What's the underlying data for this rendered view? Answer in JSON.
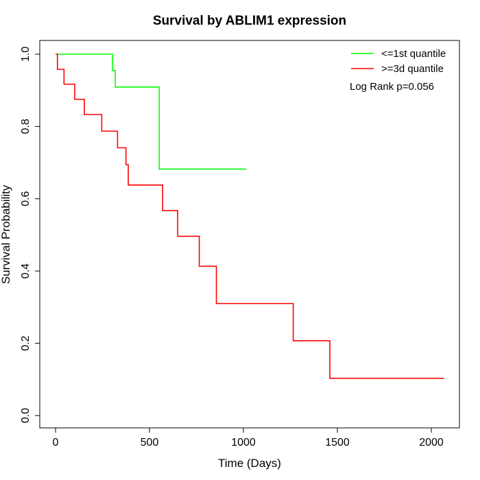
{
  "chart_data": {
    "type": "line",
    "subtype": "kaplan-meier step curve",
    "title": "Survival by ABLIM1 expression",
    "xlabel": "Time (Days)",
    "ylabel": "Survival Probability",
    "xlim": [
      0,
      2070
    ],
    "ylim": [
      0,
      1
    ],
    "x_ticks": [
      "0",
      "500",
      "1000",
      "1500",
      "2000"
    ],
    "y_ticks": [
      "0.0",
      "0.2",
      "0.4",
      "0.6",
      "0.8",
      "1.0"
    ],
    "grid": false,
    "legend_position": "top-right",
    "annotation": "Log Rank p=0.056",
    "series": [
      {
        "name": "<=1st quantile",
        "color": "#00ff00",
        "steps": [
          {
            "x": 0,
            "y": 1.0
          },
          {
            "x": 303,
            "y": 0.955
          },
          {
            "x": 318,
            "y": 0.909
          },
          {
            "x": 552,
            "y": 0.682
          },
          {
            "x": 1015,
            "y": 0.682
          }
        ]
      },
      {
        "name": ">=3d quantile",
        "color": "#ff0000",
        "steps": [
          {
            "x": 0,
            "y": 1.0
          },
          {
            "x": 10,
            "y": 0.958
          },
          {
            "x": 45,
            "y": 0.917
          },
          {
            "x": 102,
            "y": 0.875
          },
          {
            "x": 153,
            "y": 0.833
          },
          {
            "x": 246,
            "y": 0.787
          },
          {
            "x": 330,
            "y": 0.741
          },
          {
            "x": 375,
            "y": 0.694
          },
          {
            "x": 387,
            "y": 0.638
          },
          {
            "x": 570,
            "y": 0.567
          },
          {
            "x": 650,
            "y": 0.496
          },
          {
            "x": 765,
            "y": 0.413
          },
          {
            "x": 856,
            "y": 0.31
          },
          {
            "x": 1265,
            "y": 0.207
          },
          {
            "x": 1460,
            "y": 0.103
          },
          {
            "x": 2068,
            "y": 0.103
          }
        ]
      }
    ]
  }
}
